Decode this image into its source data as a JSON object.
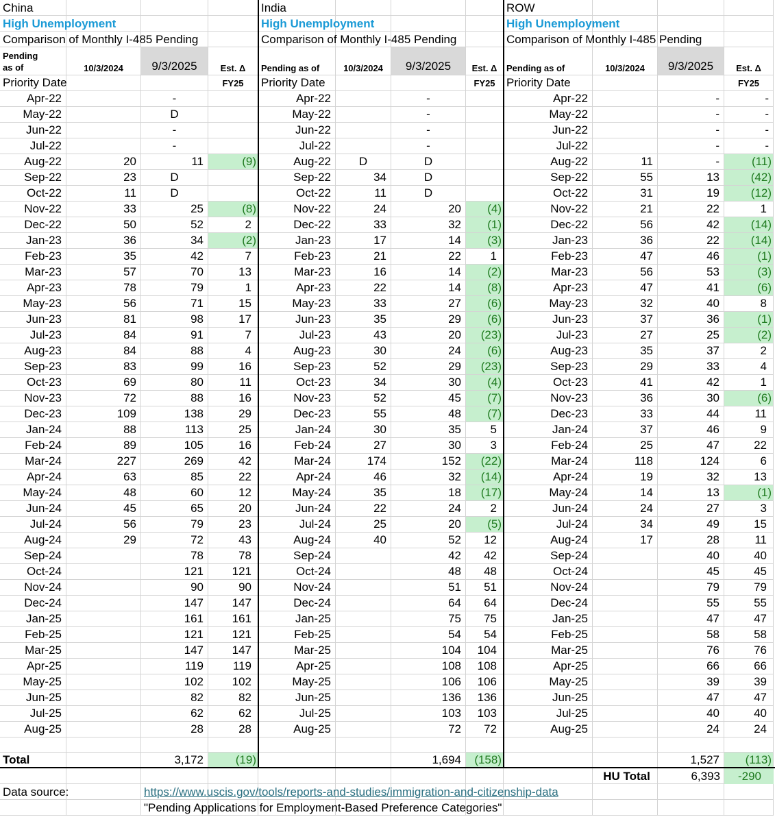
{
  "sections": [
    {
      "name": "China",
      "category": "High Unemployment",
      "caption": "Comparison of Monthly I-485 Pending",
      "header": {
        "pending": "Pending as of",
        "date1": "10/3/2024",
        "date2": "9/3/2025",
        "delta": "Est. Δ",
        "priority": "Priority Date",
        "fy": "FY25"
      },
      "rows": [
        [
          "Apr-22",
          null,
          "-",
          null
        ],
        [
          "May-22",
          null,
          "D",
          null
        ],
        [
          "Jun-22",
          null,
          "-",
          null
        ],
        [
          "Jul-22",
          null,
          "-",
          null
        ],
        [
          "Aug-22",
          20,
          11,
          "(9)"
        ],
        [
          "Sep-22",
          23,
          "D",
          null
        ],
        [
          "Oct-22",
          11,
          "D",
          null
        ],
        [
          "Nov-22",
          33,
          25,
          "(8)"
        ],
        [
          "Dec-22",
          50,
          52,
          2
        ],
        [
          "Jan-23",
          36,
          34,
          "(2)"
        ],
        [
          "Feb-23",
          35,
          42,
          7
        ],
        [
          "Mar-23",
          57,
          70,
          13
        ],
        [
          "Apr-23",
          78,
          79,
          1
        ],
        [
          "May-23",
          56,
          71,
          15
        ],
        [
          "Jun-23",
          81,
          98,
          17
        ],
        [
          "Jul-23",
          84,
          91,
          7
        ],
        [
          "Aug-23",
          84,
          88,
          4
        ],
        [
          "Sep-23",
          83,
          99,
          16
        ],
        [
          "Oct-23",
          69,
          80,
          11
        ],
        [
          "Nov-23",
          72,
          88,
          16
        ],
        [
          "Dec-23",
          109,
          138,
          29
        ],
        [
          "Jan-24",
          88,
          113,
          25
        ],
        [
          "Feb-24",
          89,
          105,
          16
        ],
        [
          "Mar-24",
          227,
          269,
          42
        ],
        [
          "Apr-24",
          63,
          85,
          22
        ],
        [
          "May-24",
          48,
          60,
          12
        ],
        [
          "Jun-24",
          45,
          65,
          20
        ],
        [
          "Jul-24",
          56,
          79,
          23
        ],
        [
          "Aug-24",
          29,
          72,
          43
        ],
        [
          "Sep-24",
          null,
          78,
          78
        ],
        [
          "Oct-24",
          null,
          121,
          121
        ],
        [
          "Nov-24",
          null,
          90,
          90
        ],
        [
          "Dec-24",
          null,
          147,
          147
        ],
        [
          "Jan-25",
          null,
          161,
          161
        ],
        [
          "Feb-25",
          null,
          121,
          121
        ],
        [
          "Mar-25",
          null,
          147,
          147
        ],
        [
          "Apr-25",
          null,
          119,
          119
        ],
        [
          "May-25",
          null,
          102,
          102
        ],
        [
          "Jun-25",
          null,
          82,
          82
        ],
        [
          "Jul-25",
          null,
          62,
          62
        ],
        [
          "Aug-25",
          null,
          28,
          28
        ]
      ],
      "total": {
        "label": "Total",
        "value": "3,172",
        "delta": "(19)"
      }
    },
    {
      "name": "India",
      "category": "High Unemployment",
      "caption": "Comparison of Monthly I-485 Pending",
      "header": {
        "pending": "Pending as of",
        "date1": "10/3/2024",
        "date2": "9/3/2025",
        "delta": "Est. Δ",
        "priority": "Priority Date",
        "fy": "FY25"
      },
      "rows": [
        [
          "Apr-22",
          null,
          "-",
          null
        ],
        [
          "May-22",
          null,
          "-",
          null
        ],
        [
          "Jun-22",
          null,
          "-",
          null
        ],
        [
          "Jul-22",
          null,
          "-",
          null
        ],
        [
          "Aug-22",
          "D",
          "D",
          null
        ],
        [
          "Sep-22",
          34,
          "D",
          null
        ],
        [
          "Oct-22",
          11,
          "D",
          null
        ],
        [
          "Nov-22",
          24,
          20,
          "(4)"
        ],
        [
          "Dec-22",
          33,
          32,
          "(1)"
        ],
        [
          "Jan-23",
          17,
          14,
          "(3)"
        ],
        [
          "Feb-23",
          21,
          22,
          1
        ],
        [
          "Mar-23",
          16,
          14,
          "(2)"
        ],
        [
          "Apr-23",
          22,
          14,
          "(8)"
        ],
        [
          "May-23",
          33,
          27,
          "(6)"
        ],
        [
          "Jun-23",
          35,
          29,
          "(6)"
        ],
        [
          "Jul-23",
          43,
          20,
          "(23)"
        ],
        [
          "Aug-23",
          30,
          24,
          "(6)"
        ],
        [
          "Sep-23",
          52,
          29,
          "(23)"
        ],
        [
          "Oct-23",
          34,
          30,
          "(4)"
        ],
        [
          "Nov-23",
          52,
          45,
          "(7)"
        ],
        [
          "Dec-23",
          55,
          48,
          "(7)"
        ],
        [
          "Jan-24",
          30,
          35,
          5
        ],
        [
          "Feb-24",
          27,
          30,
          3
        ],
        [
          "Mar-24",
          174,
          152,
          "(22)"
        ],
        [
          "Apr-24",
          46,
          32,
          "(14)"
        ],
        [
          "May-24",
          35,
          18,
          "(17)"
        ],
        [
          "Jun-24",
          22,
          24,
          2
        ],
        [
          "Jul-24",
          25,
          20,
          "(5)"
        ],
        [
          "Aug-24",
          40,
          52,
          12
        ],
        [
          "Sep-24",
          null,
          42,
          42
        ],
        [
          "Oct-24",
          null,
          48,
          48
        ],
        [
          "Nov-24",
          null,
          51,
          51
        ],
        [
          "Dec-24",
          null,
          64,
          64
        ],
        [
          "Jan-25",
          null,
          75,
          75
        ],
        [
          "Feb-25",
          null,
          54,
          54
        ],
        [
          "Mar-25",
          null,
          104,
          104
        ],
        [
          "Apr-25",
          null,
          108,
          108
        ],
        [
          "May-25",
          null,
          106,
          106
        ],
        [
          "Jun-25",
          null,
          136,
          136
        ],
        [
          "Jul-25",
          null,
          103,
          103
        ],
        [
          "Aug-25",
          null,
          72,
          72
        ]
      ],
      "total": {
        "value": "1,694",
        "delta": "(158)"
      }
    },
    {
      "name": "ROW",
      "category": "High Unemployment",
      "caption": "Comparison of Monthly I-485 Pending",
      "header": {
        "pending": "Pending as of",
        "date1": "10/3/2024",
        "date2": "9/3/2025",
        "delta": "Est. Δ",
        "priority": "Priority Date",
        "fy": "FY25"
      },
      "rows": [
        [
          "Apr-22",
          null,
          "-",
          "-"
        ],
        [
          "May-22",
          null,
          "-",
          "-"
        ],
        [
          "Jun-22",
          null,
          "-",
          "-"
        ],
        [
          "Jul-22",
          null,
          "-",
          "-"
        ],
        [
          "Aug-22",
          11,
          "-",
          "(11)"
        ],
        [
          "Sep-22",
          55,
          13,
          "(42)"
        ],
        [
          "Oct-22",
          31,
          19,
          "(12)"
        ],
        [
          "Nov-22",
          21,
          22,
          1
        ],
        [
          "Dec-22",
          56,
          42,
          "(14)"
        ],
        [
          "Jan-23",
          36,
          22,
          "(14)"
        ],
        [
          "Feb-23",
          47,
          46,
          "(1)"
        ],
        [
          "Mar-23",
          56,
          53,
          "(3)"
        ],
        [
          "Apr-23",
          47,
          41,
          "(6)"
        ],
        [
          "May-23",
          32,
          40,
          8
        ],
        [
          "Jun-23",
          37,
          36,
          "(1)"
        ],
        [
          "Jul-23",
          27,
          25,
          "(2)"
        ],
        [
          "Aug-23",
          35,
          37,
          2
        ],
        [
          "Sep-23",
          29,
          33,
          4
        ],
        [
          "Oct-23",
          41,
          42,
          1
        ],
        [
          "Nov-23",
          36,
          30,
          "(6)"
        ],
        [
          "Dec-23",
          33,
          44,
          11
        ],
        [
          "Jan-24",
          37,
          46,
          9
        ],
        [
          "Feb-24",
          25,
          47,
          22
        ],
        [
          "Mar-24",
          118,
          124,
          6
        ],
        [
          "Apr-24",
          19,
          32,
          13
        ],
        [
          "May-24",
          14,
          13,
          "(1)"
        ],
        [
          "Jun-24",
          24,
          27,
          3
        ],
        [
          "Jul-24",
          34,
          49,
          15
        ],
        [
          "Aug-24",
          17,
          28,
          11
        ],
        [
          "Sep-24",
          null,
          40,
          40
        ],
        [
          "Oct-24",
          null,
          45,
          45
        ],
        [
          "Nov-24",
          null,
          79,
          79
        ],
        [
          "Dec-24",
          null,
          55,
          55
        ],
        [
          "Jan-25",
          null,
          47,
          47
        ],
        [
          "Feb-25",
          null,
          58,
          58
        ],
        [
          "Mar-25",
          null,
          76,
          76
        ],
        [
          "Apr-25",
          null,
          66,
          66
        ],
        [
          "May-25",
          null,
          39,
          39
        ],
        [
          "Jun-25",
          null,
          47,
          47
        ],
        [
          "Jul-25",
          null,
          40,
          40
        ],
        [
          "Aug-25",
          null,
          24,
          24
        ]
      ],
      "total": {
        "value": "1,527",
        "delta": "(113)"
      }
    }
  ],
  "hu_total": {
    "label": "HU Total",
    "value": "6,393",
    "delta": -290
  },
  "source": {
    "label": "Data source:",
    "url": "https://www.uscis.gov/tools/reports-and-studies/immigration-and-citizenship-data",
    "note": "\"Pending Applications for Employment-Based Preference Categories\""
  }
}
